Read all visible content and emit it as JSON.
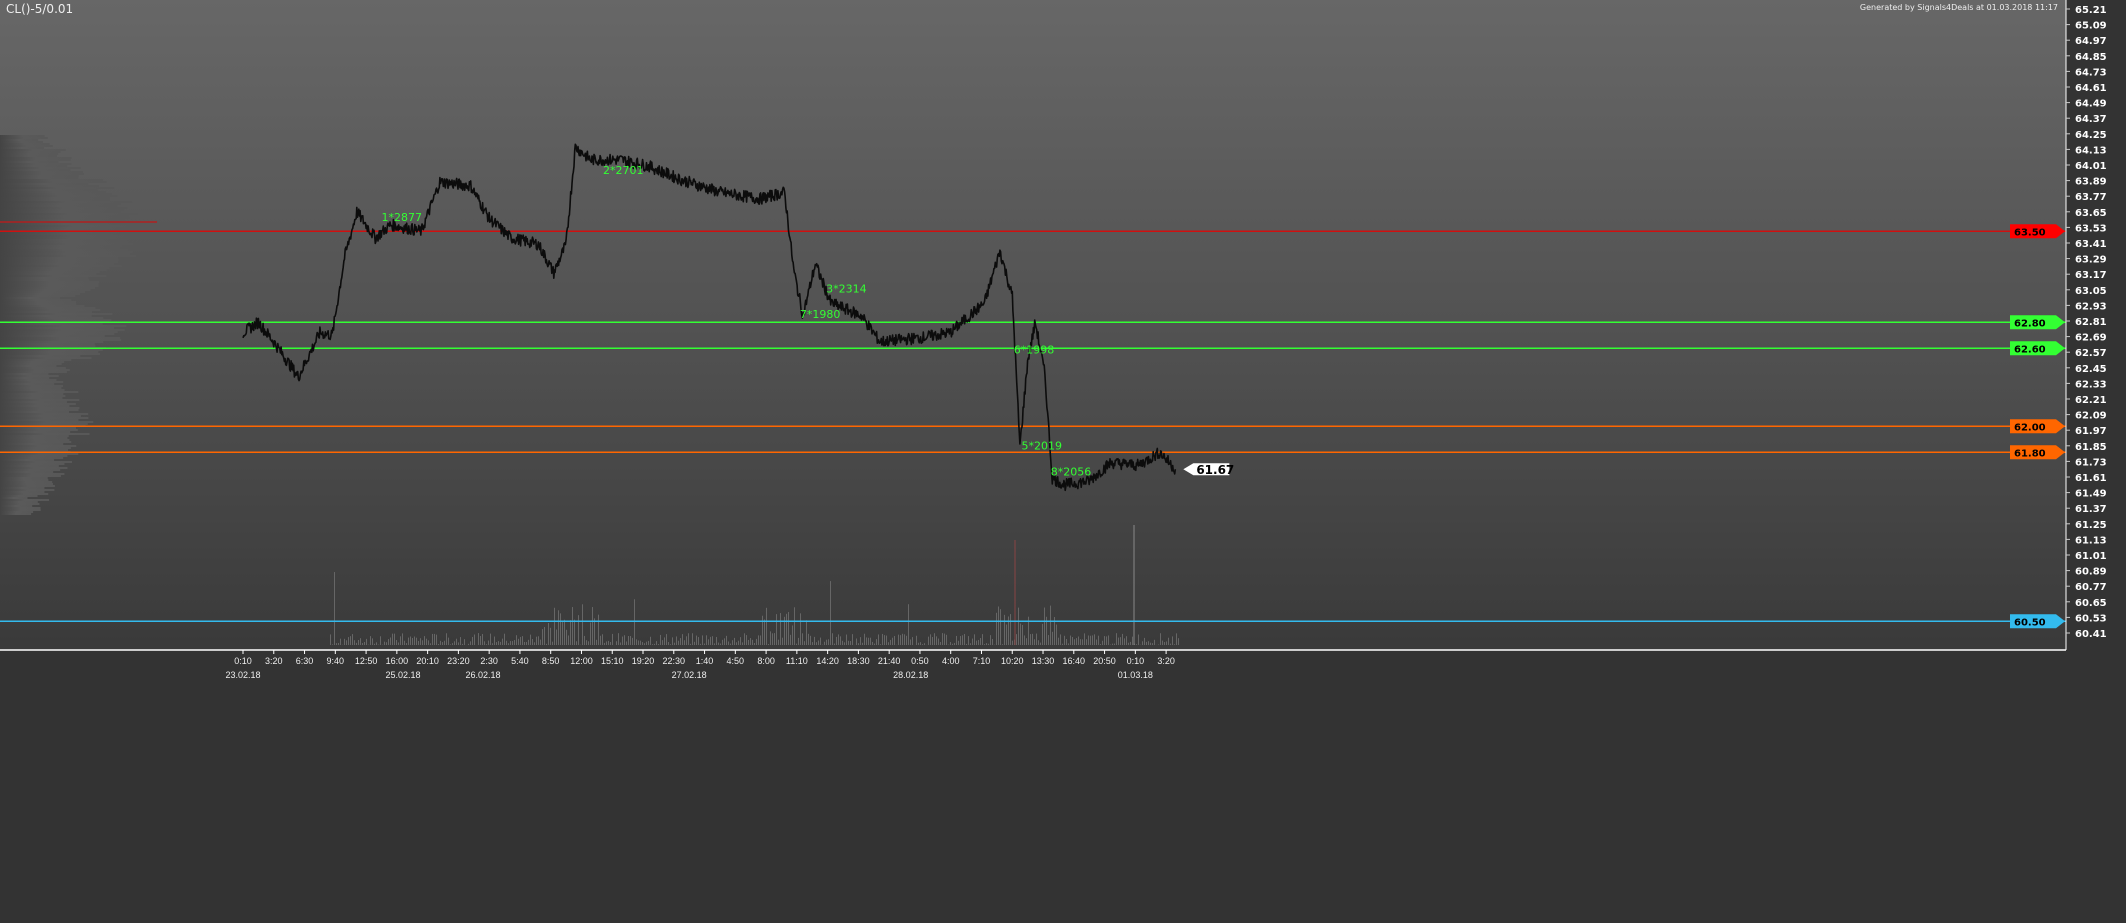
{
  "header": {
    "symbol": "CL()-5/0.01",
    "generated": "Generated by Signals4Deals at 01.03.2018 11:17"
  },
  "chart_data": {
    "type": "line",
    "y_ticks": [
      "65.21",
      "65.09",
      "64.97",
      "64.85",
      "64.73",
      "64.61",
      "64.49",
      "64.37",
      "64.25",
      "64.13",
      "64.01",
      "63.89",
      "63.77",
      "63.65",
      "63.53",
      "63.41",
      "63.29",
      "63.17",
      "63.05",
      "62.93",
      "62.81",
      "62.69",
      "62.57",
      "62.45",
      "62.33",
      "62.21",
      "62.09",
      "61.97",
      "61.85",
      "61.73",
      "61.61",
      "61.49",
      "61.37",
      "61.25",
      "61.13",
      "61.01",
      "60.89",
      "60.77",
      "60.65",
      "60.53",
      "60.41"
    ],
    "ylim": [
      60.41,
      65.21
    ],
    "x_ticks": [
      "0:10",
      "3:20",
      "6:30",
      "9:40",
      "12:50",
      "16:00",
      "20:10",
      "23:20",
      "2:30",
      "5:40",
      "8:50",
      "12:00",
      "15:10",
      "19:20",
      "22:30",
      "1:40",
      "4:50",
      "8:00",
      "11:10",
      "14:20",
      "18:30",
      "21:40",
      "0:50",
      "4:00",
      "7:10",
      "10:20",
      "13:30",
      "16:40",
      "20:50",
      "0:10",
      "3:20"
    ],
    "date_labels": [
      {
        "tick": 0,
        "label": "23.02.18"
      },
      {
        "tick": 5.2,
        "label": "25.02.18"
      },
      {
        "tick": 7.8,
        "label": "26.02.18"
      },
      {
        "tick": 14.5,
        "label": "27.02.18"
      },
      {
        "tick": 21.7,
        "label": "28.02.18"
      },
      {
        "tick": 29,
        "label": "01.03.18"
      }
    ],
    "price_points": [
      [
        0,
        62.72
      ],
      [
        0.5,
        62.8
      ],
      [
        1,
        62.65
      ],
      [
        1.8,
        62.38
      ],
      [
        2.5,
        62.72
      ],
      [
        2.9,
        62.7
      ],
      [
        3.3,
        63.3
      ],
      [
        3.7,
        63.65
      ],
      [
        4.3,
        63.45
      ],
      [
        4.8,
        63.55
      ],
      [
        5.8,
        63.5
      ],
      [
        6.4,
        63.88
      ],
      [
        7.4,
        63.85
      ],
      [
        8.0,
        63.6
      ],
      [
        8.7,
        63.45
      ],
      [
        9.6,
        63.4
      ],
      [
        10.1,
        63.18
      ],
      [
        10.5,
        63.4
      ],
      [
        10.8,
        64.15
      ],
      [
        11.3,
        64.05
      ],
      [
        12.3,
        64.05
      ],
      [
        13.2,
        64.0
      ],
      [
        14.2,
        63.9
      ],
      [
        15.5,
        63.8
      ],
      [
        16.8,
        63.75
      ],
      [
        17.6,
        63.8
      ],
      [
        17.9,
        63.2
      ],
      [
        18.2,
        62.85
      ],
      [
        18.6,
        63.25
      ],
      [
        19.1,
        62.95
      ],
      [
        20.1,
        62.85
      ],
      [
        20.7,
        62.65
      ],
      [
        22.0,
        62.68
      ],
      [
        22.98,
        62.72
      ],
      [
        24.1,
        62.95
      ],
      [
        24.6,
        63.35
      ],
      [
        25.0,
        63.0
      ],
      [
        25.25,
        61.85
      ],
      [
        25.5,
        62.5
      ],
      [
        25.75,
        62.8
      ],
      [
        26.06,
        62.4
      ],
      [
        26.3,
        61.6
      ],
      [
        26.7,
        61.55
      ],
      [
        27.5,
        61.58
      ],
      [
        28.2,
        61.72
      ],
      [
        29.1,
        61.7
      ],
      [
        29.8,
        61.8
      ],
      [
        30.3,
        61.67
      ]
    ],
    "last_price": "61.67",
    "levels": [
      {
        "price": 63.5,
        "label": "63.50",
        "color": "#ff0000",
        "line": "#d01010"
      },
      {
        "price": 62.8,
        "label": "62.80",
        "color": "#33ff33",
        "line": "#33ff33"
      },
      {
        "price": 62.6,
        "label": "62.60",
        "color": "#33ff33",
        "line": "#33ff33"
      },
      {
        "price": 62.0,
        "label": "62.00",
        "color": "#ff6600",
        "line": "#ff6600"
      },
      {
        "price": 61.8,
        "label": "61.80",
        "color": "#ff6600",
        "line": "#ff6600"
      },
      {
        "price": 60.5,
        "label": "60.50",
        "color": "#33bbee",
        "line": "#33bbee"
      }
    ],
    "annotations": [
      {
        "tick": 4.5,
        "price": 63.58,
        "label": "1*2877"
      },
      {
        "tick": 11.7,
        "price": 63.94,
        "label": "2*2701"
      },
      {
        "tick": 18.95,
        "price": 63.03,
        "label": "3*2314"
      },
      {
        "tick": 18.1,
        "price": 62.95,
        "label": "7*1980"
      },
      {
        "tick": 25.05,
        "price": 62.56,
        "label": "6*1998"
      },
      {
        "tick": 25.3,
        "price": 61.82,
        "label": "5*2019"
      },
      {
        "tick": 26.25,
        "price": 61.62,
        "label": "8*2056"
      }
    ]
  }
}
